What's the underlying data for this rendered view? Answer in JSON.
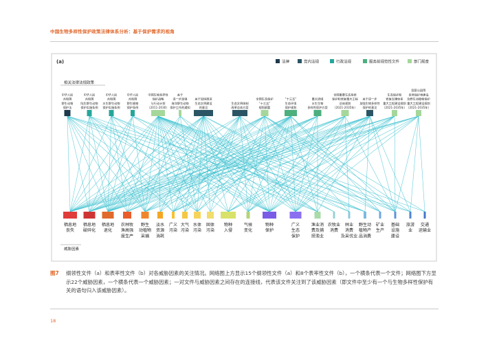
{
  "header": {
    "title": "中国生物多样性保护政策法律体系分析：基于保护需求的视角"
  },
  "panel_label": "(a)",
  "legend": [
    {
      "label": "法律",
      "color": "#1e3a4c"
    },
    {
      "label": "党内法规",
      "color": "#2b5564"
    },
    {
      "label": "行政法规",
      "color": "#26a69a"
    },
    {
      "label": "服务前规范性文件",
      "color": "#4caf7d"
    },
    {
      "label": "部门规章",
      "color": "#a5d79b"
    }
  ],
  "top_group_label": "相关法律法规政策",
  "bottom_group_label": "威胁因素",
  "laws": [
    {
      "label": "中华人民共和国野生动物保护法",
      "lines": [
        "中华人民",
        "共和国",
        "野生动物",
        "保护法"
      ],
      "color": "#1e3a4c"
    },
    {
      "label": "中华人民共和国陆生野生动物保护实施条例",
      "lines": [
        "中华人民",
        "共和国",
        "陆生野生动物",
        "保护实施条例"
      ],
      "color": "#26a69a"
    },
    {
      "label": "中华人民共和国水生野生动物保护实施条例",
      "lines": [
        "中华人民",
        "共和国",
        "水生野生动物",
        "保护实施条例"
      ],
      "color": "#26a69a"
    },
    {
      "label": "中华人民共和国野生植物保护条例",
      "lines": [
        "中华人民",
        "共和国",
        "野生植物",
        "保护条例"
      ],
      "color": "#26a69a"
    },
    {
      "label": "中国生物多样性保护战略与行动计划（2011-2030）",
      "lines": [
        "中国生物多样性",
        "保护战略",
        "与行动计划",
        "（2011-2030）"
      ],
      "color": "#a5d79b"
    },
    {
      "label": "关于进一步加强海洋野生动物保护工作的通知",
      "lines": [
        "关于",
        "进一步加强",
        "海洋野生动物",
        "保护工作的通知"
      ],
      "color": "#a5d79b"
    },
    {
      "label": "关于加快推进生态文明建设的意见",
      "lines": [
        "关于加快推进",
        "生态文明建设",
        "的意见"
      ],
      "color": "#2b5564"
    },
    {
      "label": "生态文明体制改革总体方案",
      "lines": [
        "生态文明体制",
        "改革总体方案"
      ],
      "color": "#2b5564"
    },
    {
      "label": "全国生态保护“十三五”规划纲要",
      "lines": [
        "全国生态保护",
        "“十三五”",
        "规划纲要"
      ],
      "color": "#a5d79b"
    },
    {
      "label": "“十三五”生态环境保护规划",
      "lines": [
        "“十三五”",
        "生态环境",
        "保护规划"
      ],
      "color": "#4caf7d"
    },
    {
      "label": "重点流域水生生物多样性保护方案",
      "lines": [
        "重点流域",
        "水生生物",
        "多样性保护方案"
      ],
      "color": "#4caf7d"
    },
    {
      "label": "全国重要生态系统保护和修复重大工程总体规划（2021-2035年）",
      "lines": [
        "全国重要生态系统",
        "保护和修复重大工程",
        "总体规划",
        "（2021-2035年）"
      ],
      "color": "#a5d79b"
    },
    {
      "label": "关于进一步加强生物多样性保护的意见",
      "lines": [
        "关于进一步",
        "加强生物多样性",
        "保护的意见"
      ],
      "color": "#2b5564"
    },
    {
      "label": "生态保护和修复支撑体系重大工程建设规划（2021-2035年）",
      "lines": [
        "生态保护和",
        "修复支撑体系",
        "重大工程建设规划",
        "（2021-2035年）"
      ],
      "color": "#a5d79b"
    },
    {
      "label": "国家公园等自然保护地建设及野生动植物保护重大工程建设规划（2021-2035年）",
      "lines": [
        "国家公园等",
        "自然保护地建设",
        "及野生动植物保护",
        "重大工程建设规划",
        "（2021-2035年）"
      ],
      "color": "#a5d79b"
    }
  ],
  "threats": [
    {
      "label": "栖息地丧失",
      "lines": [
        "栖息地",
        "丧失"
      ],
      "color": "#e03c3c"
    },
    {
      "label": "栖息地破碎化",
      "lines": [
        "栖息地",
        "破碎化"
      ],
      "color": "#cf3434"
    },
    {
      "label": "栖息地退化",
      "lines": [
        "栖息地",
        "退化"
      ],
      "color": "#e06a2b"
    },
    {
      "label": "农林牧渔高强度生产",
      "lines": [
        "农林牧",
        "渔高强",
        "度生产"
      ],
      "color": "#e85d2a"
    },
    {
      "label": "野生动植物采捕",
      "lines": [
        "野生",
        "动植物",
        "采捕"
      ],
      "color": "#f0862b"
    },
    {
      "label": "淡水资源消耗",
      "lines": [
        "淡水",
        "资源",
        "消耗"
      ],
      "color": "#f5a623"
    },
    {
      "label": "广义污染",
      "lines": [
        "广义",
        "污染"
      ],
      "color": "#f7c231"
    },
    {
      "label": "大气污染",
      "lines": [
        "大气",
        "污染"
      ],
      "color": "#f5c842"
    },
    {
      "label": "水体污染",
      "lines": [
        "水体",
        "污染"
      ],
      "color": "#f7d35a"
    },
    {
      "label": "固体污染",
      "lines": [
        "固体",
        "污染"
      ],
      "color": "#f2dc6b"
    },
    {
      "label": "物种入侵",
      "lines": [
        "物种",
        "入侵"
      ],
      "color": "#d8e26a"
    },
    {
      "label": "气候变化",
      "lines": [
        "气候",
        "变化"
      ],
      "color": "#b5d47a"
    },
    {
      "label": "物种保护",
      "lines": [
        "物种",
        "保护"
      ],
      "color": "#7b5ce6"
    },
    {
      "label": "广义生态保护",
      "lines": [
        "广义",
        "生态",
        "保护"
      ],
      "color": "#8a6ff0"
    },
    {
      "label": "渔业消费及捕捞渔业",
      "lines": [
        "渔业消",
        "费及捕",
        "捞渔业"
      ],
      "color": "#a8dba8"
    },
    {
      "label": "农牧业消费",
      "lines": [
        "农牧业",
        "消费"
      ],
      "color": "#9ad0d0"
    },
    {
      "label": "林业消费及采伐业",
      "lines": [
        "林业",
        "消费",
        "及采伐业"
      ],
      "color": "#8cc9de"
    },
    {
      "label": "野生动植物产品消费",
      "lines": [
        "野生动",
        "植物产",
        "品消费"
      ],
      "color": "#7fb8e0"
    },
    {
      "label": "矿业生产",
      "lines": [
        "矿业",
        "生产"
      ],
      "color": "#6fa6e0"
    },
    {
      "label": "基础设施建设",
      "lines": [
        "基础",
        "设施",
        "建设"
      ],
      "color": "#5f92da"
    },
    {
      "label": "旅游业",
      "lines": [
        "旅游",
        "业"
      ],
      "color": "#5283d2"
    },
    {
      "label": "交通运输业",
      "lines": [
        "交通",
        "运输业"
      ],
      "color": "#4674c8"
    }
  ],
  "caption": {
    "figure_no": "图7",
    "text": "纲领性文件（a）和表率性文件（b）对各威胁因素的关注情况。网络图上方显示15个纲领性文件（a）和8个表率性文件（b），一个横条代表一个文件；网络图下方显示22个威胁因素，一个横条代表一个威胁因素；一对文件与威胁因素之间存在的连接线，代表该文件关注到了该威胁因素（即文件中至少有一个与生物多样性保护有关的语句归入该威胁因素）。"
  },
  "page_number": "18",
  "link_color": "#3cc1d0"
}
